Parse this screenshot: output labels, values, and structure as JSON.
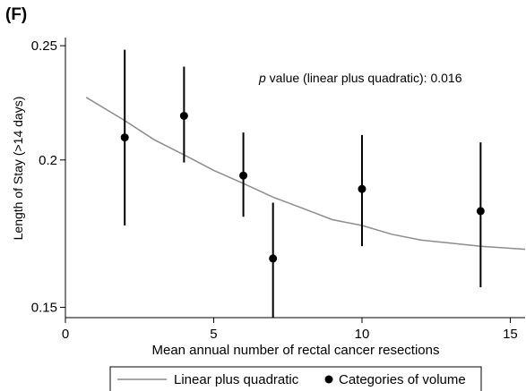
{
  "panel_label": "(F)",
  "chart_data": {
    "type": "scatter",
    "xlabel": "Mean annual number of rectal cancer resections",
    "ylabel": "Length of Stay (>14 days)",
    "xlim": [
      0,
      15.5
    ],
    "ylim": [
      0.147,
      0.254
    ],
    "log_scale_y": true,
    "x_ticks": [
      0,
      5,
      10,
      15
    ],
    "y_ticks": [
      0.15,
      0.2,
      0.25
    ],
    "y_tick_labels": [
      "0.15",
      "0.2",
      "0.25"
    ],
    "annotation": {
      "italic_part": "p",
      "text": " value (linear plus quadratic): 0.016"
    },
    "points": {
      "name": "Categories of volume",
      "x": [
        2,
        4,
        6,
        7,
        10,
        14
      ],
      "y": [
        0.209,
        0.218,
        0.194,
        0.165,
        0.189,
        0.181
      ],
      "lower": [
        0.176,
        0.199,
        0.179,
        0.147,
        0.169,
        0.156
      ],
      "upper": [
        0.248,
        0.24,
        0.211,
        0.184,
        0.21,
        0.207
      ]
    },
    "fit_line": {
      "name": "Linear plus quadratic",
      "x": [
        0.7,
        2,
        3,
        4,
        5,
        6,
        7,
        8,
        9,
        10,
        11,
        12,
        13,
        14,
        15.5
      ],
      "y": [
        0.226,
        0.216,
        0.208,
        0.202,
        0.196,
        0.191,
        0.186,
        0.182,
        0.178,
        0.176,
        0.173,
        0.171,
        0.17,
        0.169,
        0.168
      ]
    },
    "legend": {
      "position": "bottom",
      "entries": [
        "Linear plus quadratic",
        "Categories of volume"
      ]
    },
    "grid": false,
    "colors": {
      "fit_line": "#8c8c8c",
      "points": "#000000",
      "axes": "#000000"
    }
  }
}
